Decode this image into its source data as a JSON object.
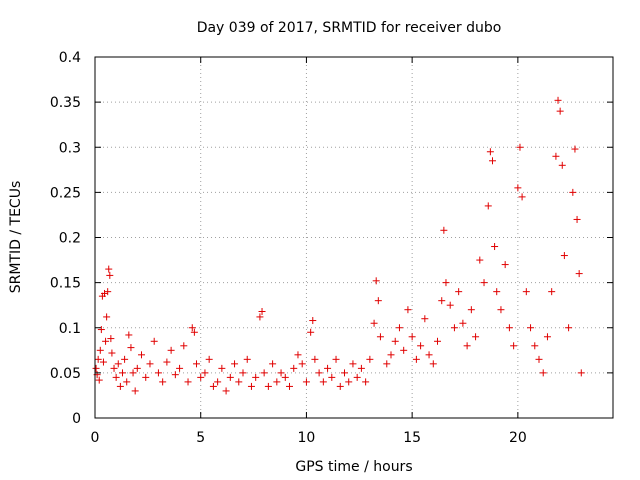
{
  "chart_data": {
    "type": "scatter",
    "title": "Day 039 of 2017, SRMTID for receiver dubo",
    "xlabel": "GPS time / hours",
    "ylabel": "SRMTID / TECUs",
    "xlim": [
      0,
      24.5
    ],
    "ylim": [
      0,
      0.4
    ],
    "x_ticks": [
      0,
      5,
      10,
      15,
      20
    ],
    "x_tick_labels": [
      "0",
      "5",
      "10",
      "15",
      "20"
    ],
    "y_ticks": [
      0,
      0.05,
      0.1,
      0.15,
      0.2,
      0.25,
      0.3,
      0.35,
      0.4
    ],
    "y_tick_labels": [
      "0",
      "0.05",
      "0.1",
      "0.15",
      "0.2",
      "0.25",
      "0.3",
      "0.35",
      "0.4"
    ],
    "grid": true,
    "marker": "plus",
    "series_color": "#e00000",
    "series": [
      {
        "name": "SRMTID",
        "points": [
          [
            0.05,
            0.055
          ],
          [
            0.1,
            0.048
          ],
          [
            0.15,
            0.065
          ],
          [
            0.2,
            0.042
          ],
          [
            0.25,
            0.075
          ],
          [
            0.3,
            0.098
          ],
          [
            0.35,
            0.135
          ],
          [
            0.4,
            0.062
          ],
          [
            0.45,
            0.138
          ],
          [
            0.5,
            0.085
          ],
          [
            0.55,
            0.112
          ],
          [
            0.6,
            0.14
          ],
          [
            0.65,
            0.165
          ],
          [
            0.7,
            0.158
          ],
          [
            0.75,
            0.088
          ],
          [
            0.8,
            0.072
          ],
          [
            0.9,
            0.055
          ],
          [
            1.0,
            0.045
          ],
          [
            1.1,
            0.06
          ],
          [
            1.2,
            0.035
          ],
          [
            1.3,
            0.05
          ],
          [
            1.4,
            0.065
          ],
          [
            1.5,
            0.04
          ],
          [
            1.6,
            0.092
          ],
          [
            1.7,
            0.078
          ],
          [
            1.8,
            0.05
          ],
          [
            1.9,
            0.03
          ],
          [
            2.0,
            0.055
          ],
          [
            2.2,
            0.07
          ],
          [
            2.4,
            0.045
          ],
          [
            2.6,
            0.06
          ],
          [
            2.8,
            0.085
          ],
          [
            3.0,
            0.05
          ],
          [
            3.2,
            0.04
          ],
          [
            3.4,
            0.062
          ],
          [
            3.6,
            0.075
          ],
          [
            3.8,
            0.048
          ],
          [
            4.0,
            0.055
          ],
          [
            4.2,
            0.08
          ],
          [
            4.4,
            0.04
          ],
          [
            4.6,
            0.1
          ],
          [
            4.7,
            0.095
          ],
          [
            4.8,
            0.06
          ],
          [
            5.0,
            0.045
          ],
          [
            5.2,
            0.05
          ],
          [
            5.4,
            0.065
          ],
          [
            5.6,
            0.035
          ],
          [
            5.8,
            0.04
          ],
          [
            6.0,
            0.055
          ],
          [
            6.2,
            0.03
          ],
          [
            6.4,
            0.045
          ],
          [
            6.6,
            0.06
          ],
          [
            6.8,
            0.04
          ],
          [
            7.0,
            0.05
          ],
          [
            7.2,
            0.065
          ],
          [
            7.4,
            0.035
          ],
          [
            7.6,
            0.045
          ],
          [
            7.8,
            0.112
          ],
          [
            7.9,
            0.118
          ],
          [
            8.0,
            0.05
          ],
          [
            8.2,
            0.035
          ],
          [
            8.4,
            0.06
          ],
          [
            8.6,
            0.04
          ],
          [
            8.8,
            0.05
          ],
          [
            9.0,
            0.045
          ],
          [
            9.2,
            0.035
          ],
          [
            9.4,
            0.055
          ],
          [
            9.6,
            0.07
          ],
          [
            9.8,
            0.06
          ],
          [
            10.0,
            0.04
          ],
          [
            10.2,
            0.095
          ],
          [
            10.3,
            0.108
          ],
          [
            10.4,
            0.065
          ],
          [
            10.6,
            0.05
          ],
          [
            10.8,
            0.04
          ],
          [
            11.0,
            0.055
          ],
          [
            11.2,
            0.045
          ],
          [
            11.4,
            0.065
          ],
          [
            11.6,
            0.035
          ],
          [
            11.8,
            0.05
          ],
          [
            12.0,
            0.04
          ],
          [
            12.2,
            0.06
          ],
          [
            12.4,
            0.045
          ],
          [
            12.6,
            0.055
          ],
          [
            12.8,
            0.04
          ],
          [
            13.0,
            0.065
          ],
          [
            13.2,
            0.105
          ],
          [
            13.3,
            0.152
          ],
          [
            13.4,
            0.13
          ],
          [
            13.5,
            0.09
          ],
          [
            13.8,
            0.06
          ],
          [
            14.0,
            0.07
          ],
          [
            14.2,
            0.085
          ],
          [
            14.4,
            0.1
          ],
          [
            14.6,
            0.075
          ],
          [
            14.8,
            0.12
          ],
          [
            15.0,
            0.09
          ],
          [
            15.2,
            0.065
          ],
          [
            15.4,
            0.08
          ],
          [
            15.6,
            0.11
          ],
          [
            15.8,
            0.07
          ],
          [
            16.0,
            0.06
          ],
          [
            16.2,
            0.085
          ],
          [
            16.4,
            0.13
          ],
          [
            16.5,
            0.208
          ],
          [
            16.6,
            0.15
          ],
          [
            16.8,
            0.125
          ],
          [
            17.0,
            0.1
          ],
          [
            17.2,
            0.14
          ],
          [
            17.4,
            0.105
          ],
          [
            17.6,
            0.08
          ],
          [
            17.8,
            0.12
          ],
          [
            18.0,
            0.09
          ],
          [
            18.2,
            0.175
          ],
          [
            18.4,
            0.15
          ],
          [
            18.6,
            0.235
          ],
          [
            18.7,
            0.295
          ],
          [
            18.8,
            0.285
          ],
          [
            18.9,
            0.19
          ],
          [
            19.0,
            0.14
          ],
          [
            19.2,
            0.12
          ],
          [
            19.4,
            0.17
          ],
          [
            19.6,
            0.1
          ],
          [
            19.8,
            0.08
          ],
          [
            20.0,
            0.255
          ],
          [
            20.1,
            0.3
          ],
          [
            20.2,
            0.245
          ],
          [
            20.4,
            0.14
          ],
          [
            20.6,
            0.1
          ],
          [
            20.8,
            0.08
          ],
          [
            21.0,
            0.065
          ],
          [
            21.2,
            0.05
          ],
          [
            21.4,
            0.09
          ],
          [
            21.6,
            0.14
          ],
          [
            21.8,
            0.29
          ],
          [
            21.9,
            0.352
          ],
          [
            22.0,
            0.34
          ],
          [
            22.1,
            0.28
          ],
          [
            22.2,
            0.18
          ],
          [
            22.4,
            0.1
          ],
          [
            22.6,
            0.25
          ],
          [
            22.7,
            0.298
          ],
          [
            22.8,
            0.22
          ],
          [
            22.9,
            0.16
          ],
          [
            23.0,
            0.05
          ]
        ]
      }
    ]
  }
}
